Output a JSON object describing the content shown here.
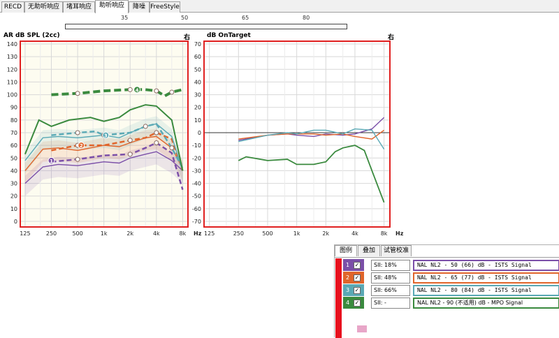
{
  "tabs": [
    "RECD",
    "无助听响应",
    "堵耳响应",
    "助听响应",
    "降噪",
    "FreeStyle"
  ],
  "active_tab": 3,
  "ruler_labels": [
    "35",
    "50",
    "65",
    "80"
  ],
  "left_panel": {
    "ylabel": "AR dB SPL (2cc)",
    "side": "右",
    "yticks": [
      "140",
      "130",
      "120",
      "110",
      "100",
      "90",
      "80",
      "70",
      "60",
      "50",
      "40",
      "30",
      "20",
      "10",
      "0"
    ],
    "xticks": [
      "125",
      "250",
      "500",
      "1k",
      "2k",
      "4k",
      "8k"
    ],
    "xunit": "Hz"
  },
  "right_panel": {
    "ylabel": "dB OnTarget",
    "side": "右",
    "yticks": [
      "70",
      "60",
      "50",
      "40",
      "30",
      "20",
      "10",
      "0",
      "-10",
      "-20",
      "-30",
      "-40",
      "-50",
      "-60",
      "-70"
    ],
    "xticks": [
      "125",
      "250",
      "500",
      "1k",
      "2k",
      "4k",
      "8k"
    ],
    "xunit": "Hz"
  },
  "legend": {
    "tabs": [
      "图例",
      "叠加",
      "试管校准"
    ],
    "rows": [
      {
        "num": "1",
        "check": "✓",
        "sii": "SII: 18%",
        "desc": "NAL NL2 - 50 (66) dB - ISTS Signal",
        "color": "#7b4fa8"
      },
      {
        "num": "2",
        "check": "✓",
        "sii": "SII: 48%",
        "desc": "NAL NL2 - 65 (77) dB - ISTS Signal",
        "color": "#e0642a"
      },
      {
        "num": "3",
        "check": "✓",
        "sii": "SII: 66%",
        "desc": "NAL NL2 - 80 (84) dB - ISTS Signal",
        "color": "#5aa9b5"
      },
      {
        "num": "4",
        "check": "✓",
        "sii": "SII: -",
        "desc": "NAL NL2 - 90 (不适用) dB - MPO Signal",
        "color": "#3a8a3e"
      }
    ]
  },
  "chart_data": [
    {
      "type": "line",
      "title": "",
      "ylabel": "AR dB SPL (2cc)",
      "xlabel": "Hz",
      "xscale": "log",
      "ylim": [
        0,
        140
      ],
      "x": [
        125,
        250,
        500,
        1000,
        2000,
        4000,
        8000
      ],
      "series": [
        {
          "name": "NAL NL2 - 50 (66) dB - ISTS Signal",
          "color": "#7b4fa8",
          "target": [
            [
              250,
              47
            ],
            [
              500,
              49
            ],
            [
              1000,
              52
            ],
            [
              2000,
              53
            ],
            [
              3000,
              58
            ],
            [
              4000,
              62
            ],
            [
              6000,
              54
            ],
            [
              8000,
              25
            ]
          ],
          "measured": [
            [
              125,
              30
            ],
            [
              200,
              43
            ],
            [
              300,
              45
            ],
            [
              500,
              44
            ],
            [
              1000,
              47
            ],
            [
              1500,
              46
            ],
            [
              2000,
              50
            ],
            [
              3000,
              53
            ],
            [
              4000,
              55
            ],
            [
              6000,
              48
            ],
            [
              8000,
              40
            ]
          ]
        },
        {
          "name": "NAL NL2 - 65 (77) dB - ISTS Signal",
          "color": "#e0642a",
          "target": [
            [
              250,
              56
            ],
            [
              500,
              60
            ],
            [
              1000,
              60
            ],
            [
              2000,
              64
            ],
            [
              3000,
              66
            ],
            [
              4000,
              70
            ],
            [
              6000,
              65
            ],
            [
              8000,
              40
            ]
          ],
          "measured": [
            [
              125,
              40
            ],
            [
              200,
              57
            ],
            [
              300,
              58
            ],
            [
              500,
              56
            ],
            [
              1000,
              60
            ],
            [
              1500,
              59
            ],
            [
              2000,
              62
            ],
            [
              3000,
              66
            ],
            [
              4000,
              67
            ],
            [
              6000,
              58
            ],
            [
              8000,
              42
            ]
          ]
        },
        {
          "name": "NAL NL2 - 80 (84) dB - ISTS Signal",
          "color": "#5aa9b5",
          "target": [
            [
              250,
              68
            ],
            [
              500,
              70
            ],
            [
              800,
              71
            ],
            [
              1000,
              68
            ],
            [
              2000,
              70
            ],
            [
              3000,
              75
            ],
            [
              4000,
              77
            ],
            [
              6000,
              58
            ],
            [
              8000,
              42
            ]
          ],
          "measured": [
            [
              125,
              48
            ],
            [
              200,
              66
            ],
            [
              300,
              67
            ],
            [
              500,
              66
            ],
            [
              1000,
              68
            ],
            [
              1500,
              66
            ],
            [
              2000,
              70
            ],
            [
              3000,
              75
            ],
            [
              4000,
              77
            ],
            [
              6000,
              67
            ],
            [
              8000,
              40
            ]
          ]
        },
        {
          "name": "NAL NL2 - 90 (不适用) dB - MPO Signal",
          "color": "#3a8a3e",
          "target": [
            [
              250,
              100
            ],
            [
              500,
              101
            ],
            [
              1000,
              103
            ],
            [
              2000,
              104
            ],
            [
              3000,
              104
            ],
            [
              4000,
              103
            ],
            [
              5000,
              99
            ],
            [
              6000,
              102
            ],
            [
              8000,
              104
            ]
          ],
          "measured": [
            [
              125,
              53
            ],
            [
              180,
              80
            ],
            [
              250,
              75
            ],
            [
              400,
              80
            ],
            [
              700,
              82
            ],
            [
              1000,
              79
            ],
            [
              1500,
              82
            ],
            [
              2000,
              88
            ],
            [
              3000,
              92
            ],
            [
              4000,
              91
            ],
            [
              6000,
              80
            ],
            [
              8000,
              40
            ]
          ]
        }
      ]
    },
    {
      "type": "line",
      "title": "",
      "ylabel": "dB OnTarget",
      "xlabel": "Hz",
      "xscale": "log",
      "ylim": [
        -70,
        70
      ],
      "x": [
        125,
        250,
        500,
        1000,
        2000,
        4000,
        8000
      ],
      "series": [
        {
          "name": "NAL NL2 - 50 (66) dB - ISTS Signal",
          "color": "#7b4fa8",
          "values": [
            [
              250,
              -6
            ],
            [
              500,
              -2
            ],
            [
              800,
              -1
            ],
            [
              1000,
              -2
            ],
            [
              1500,
              -3
            ],
            [
              2000,
              -1
            ],
            [
              3000,
              -2
            ],
            [
              4000,
              -1
            ],
            [
              6000,
              3
            ],
            [
              8000,
              12
            ]
          ]
        },
        {
          "name": "NAL NL2 - 65 (77) dB - ISTS Signal",
          "color": "#e0642a",
          "values": [
            [
              250,
              -5
            ],
            [
              500,
              -2
            ],
            [
              800,
              -1
            ],
            [
              1000,
              -1
            ],
            [
              1500,
              -1
            ],
            [
              2000,
              -2
            ],
            [
              3000,
              -1
            ],
            [
              4000,
              -3
            ],
            [
              6000,
              -5
            ],
            [
              8000,
              2
            ]
          ]
        },
        {
          "name": "NAL NL2 - 80 (84) dB - ISTS Signal",
          "color": "#5aa9b5",
          "values": [
            [
              250,
              -7
            ],
            [
              500,
              -2
            ],
            [
              800,
              0
            ],
            [
              1000,
              -1
            ],
            [
              1500,
              2
            ],
            [
              2000,
              2
            ],
            [
              3000,
              -1
            ],
            [
              4000,
              3
            ],
            [
              6000,
              2
            ],
            [
              8000,
              -13
            ]
          ]
        },
        {
          "name": "NAL NL2 - 90 (不适用) dB - MPO Signal",
          "color": "#3a8a3e",
          "values": [
            [
              250,
              -22
            ],
            [
              300,
              -19
            ],
            [
              500,
              -22
            ],
            [
              800,
              -21
            ],
            [
              1000,
              -25
            ],
            [
              1500,
              -25
            ],
            [
              2000,
              -23
            ],
            [
              2500,
              -15
            ],
            [
              3000,
              -12
            ],
            [
              4000,
              -10
            ],
            [
              5000,
              -14
            ],
            [
              6000,
              -30
            ],
            [
              8000,
              -55
            ]
          ]
        }
      ]
    }
  ]
}
